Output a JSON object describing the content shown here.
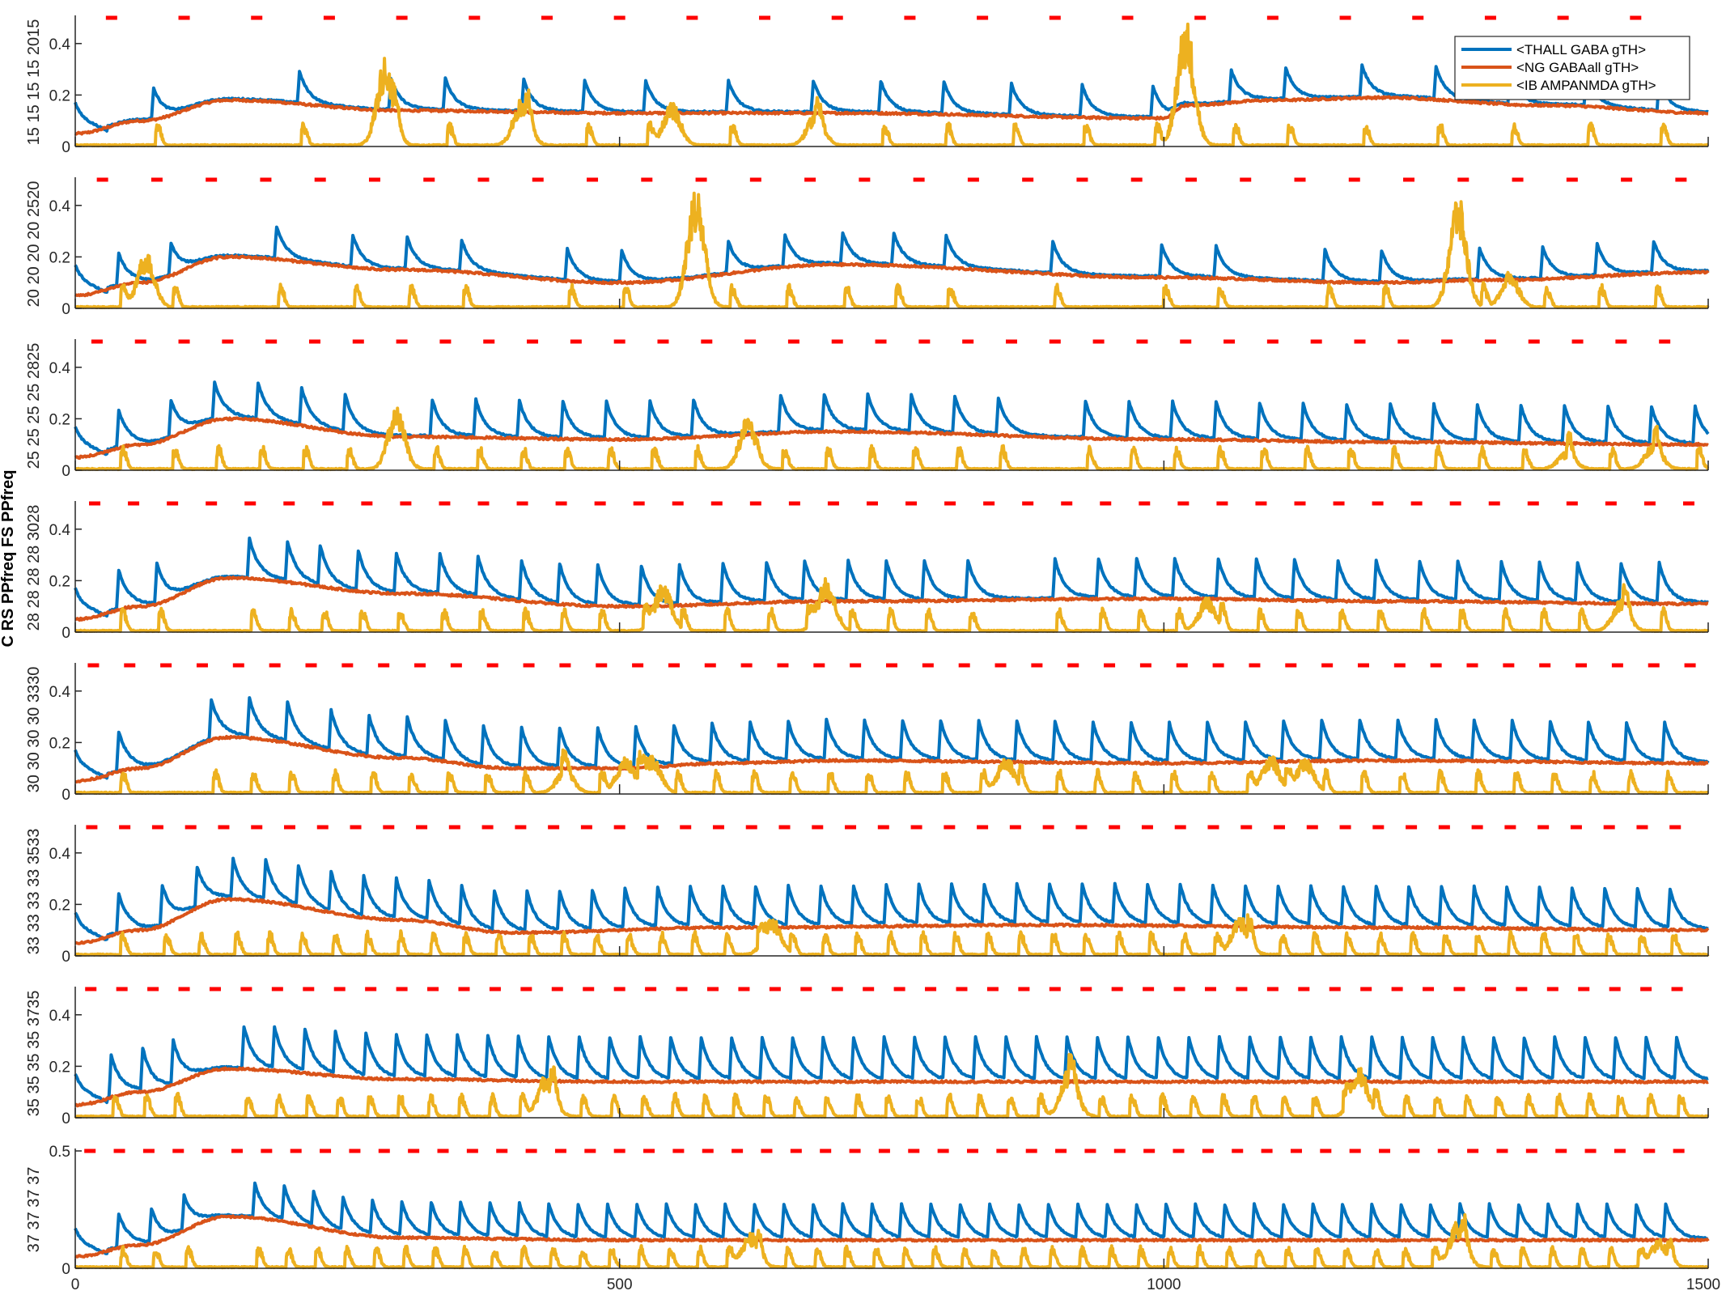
{
  "chart_data": {
    "type": "line",
    "xlim": [
      0,
      1500
    ],
    "x_ticks": [
      "0",
      "500",
      "1000",
      "1500"
    ],
    "row_labels": [
      "15 15 15 15 2015",
      "20 20 20 20 2520",
      "25 25 25 25 2825",
      "28 28 28 28 3028",
      "30 30 30 30 3330",
      "33 33 33 33 3533",
      "35 35 35 35 3735",
      "37 37 37 37"
    ],
    "bold_label": "C RS PPfreq FS PPfreq",
    "legend_position": "top-right",
    "legend": [
      "<THALL GABA gTH>",
      "<NG GABAall gTH>",
      "<IB AMPANMDA gTH>"
    ],
    "colors": {
      "thall": "#0072BD",
      "ng": "#D95319",
      "ib": "#EDB120",
      "pulse": "#FF0000",
      "axis": "#262626"
    },
    "panels": [
      {
        "frequency": 15,
        "ylim": [
          0,
          0.5
        ],
        "y_ticks": [
          "0",
          "0.2",
          "0.4"
        ],
        "thall_peak_times": [
          72,
          206,
          290,
          340,
          412,
          468,
          524,
          600,
          678,
          740,
          798,
          860,
          925,
          990,
          1062,
          1112,
          1182,
          1250,
          1318,
          1388,
          1455
        ],
        "thall_peak_amp": 0.22,
        "ng_envelope": {
          "t": [
            0,
            60,
            140,
            300,
            500,
            700,
            1000,
            1020,
            1100,
            1200,
            1350,
            1500
          ],
          "v": [
            0.05,
            0.1,
            0.18,
            0.14,
            0.13,
            0.13,
            0.11,
            0.16,
            0.18,
            0.19,
            0.16,
            0.13
          ]
        },
        "ib_bursts": [
          {
            "t": 285,
            "amp": 0.35
          },
          {
            "t": 410,
            "amp": 0.18
          },
          {
            "t": 548,
            "amp": 0.17
          },
          {
            "t": 680,
            "amp": 0.13
          },
          {
            "t": 1020,
            "amp": 0.5
          }
        ]
      },
      {
        "frequency": 20,
        "ylim": [
          0,
          0.5
        ],
        "y_ticks": [
          "0",
          "0.2",
          "0.4"
        ],
        "thall_peak_times": [
          40,
          88,
          185,
          255,
          305,
          355,
          452,
          502,
          600,
          652,
          705,
          752,
          800,
          898,
          998,
          1048,
          1148,
          1200,
          1290,
          1348,
          1398,
          1450
        ],
        "thall_peak_amp": 0.22,
        "ng_envelope": {
          "t": [
            0,
            60,
            140,
            300,
            500,
            700,
            1000,
            1200,
            1300,
            1500
          ],
          "v": [
            0.05,
            0.1,
            0.2,
            0.15,
            0.1,
            0.17,
            0.12,
            0.1,
            0.11,
            0.14
          ]
        },
        "ib_bursts": [
          {
            "t": 65,
            "amp": 0.22
          },
          {
            "t": 570,
            "amp": 0.48
          },
          {
            "t": 1270,
            "amp": 0.44
          },
          {
            "t": 1318,
            "amp": 0.14
          }
        ]
      },
      {
        "frequency": 25,
        "ylim": [
          0,
          0.5
        ],
        "y_ticks": [
          "0",
          "0.2",
          "0.4"
        ],
        "thall_peak_times": [
          40,
          88,
          128,
          168,
          208,
          248,
          328,
          368,
          408,
          448,
          488,
          528,
          568,
          648,
          688,
          728,
          768,
          808,
          848,
          928,
          968,
          1008,
          1048,
          1088,
          1128,
          1168,
          1208,
          1248,
          1288,
          1328,
          1368,
          1408,
          1448,
          1488
        ],
        "thall_peak_amp": 0.24,
        "ng_envelope": {
          "t": [
            0,
            60,
            140,
            300,
            500,
            700,
            1000,
            1200,
            1500
          ],
          "v": [
            0.05,
            0.1,
            0.2,
            0.13,
            0.12,
            0.15,
            0.12,
            0.11,
            0.1
          ]
        },
        "ib_bursts": [
          {
            "t": 295,
            "amp": 0.24
          },
          {
            "t": 618,
            "amp": 0.21
          },
          {
            "t": 1370,
            "amp": 0.07
          },
          {
            "t": 1450,
            "amp": 0.1
          }
        ]
      },
      {
        "frequency": 28,
        "ylim": [
          0,
          0.5
        ],
        "y_ticks": [
          "0",
          "0.2",
          "0.4"
        ],
        "thall_peak_times": [
          40,
          75,
          160,
          195,
          225,
          260,
          295,
          335,
          370,
          410,
          445,
          480,
          520,
          555,
          595,
          635,
          670,
          710,
          745,
          780,
          820,
          900,
          940,
          975,
          1010,
          1050,
          1085,
          1120,
          1160,
          1195,
          1235,
          1270,
          1310,
          1345,
          1380,
          1420,
          1455
        ],
        "thall_peak_amp": 0.25,
        "ng_envelope": {
          "t": [
            0,
            60,
            140,
            300,
            500,
            700,
            1000,
            1200,
            1500
          ],
          "v": [
            0.05,
            0.1,
            0.21,
            0.15,
            0.1,
            0.12,
            0.13,
            0.12,
            0.11
          ]
        },
        "ib_bursts": [
          {
            "t": 540,
            "amp": 0.19
          },
          {
            "t": 690,
            "amp": 0.21
          },
          {
            "t": 1040,
            "amp": 0.13
          },
          {
            "t": 1420,
            "amp": 0.12
          }
        ]
      },
      {
        "frequency": 30,
        "ylim": [
          0,
          0.5
        ],
        "y_ticks": [
          "0",
          "0.2",
          "0.4"
        ],
        "thall_peak_times": [
          40,
          125,
          160,
          195,
          235,
          270,
          305,
          340,
          375,
          410,
          445,
          480,
          515,
          550,
          585,
          620,
          655,
          690,
          725,
          760,
          795,
          830,
          865,
          900,
          935,
          970,
          1005,
          1040,
          1075,
          1110,
          1145,
          1180,
          1215,
          1250,
          1285,
          1320,
          1355,
          1390,
          1425,
          1460
        ],
        "thall_peak_amp": 0.25,
        "ng_envelope": {
          "t": [
            0,
            60,
            140,
            300,
            400,
            500,
            600,
            700,
            1000,
            1200,
            1500
          ],
          "v": [
            0.05,
            0.1,
            0.22,
            0.14,
            0.1,
            0.1,
            0.12,
            0.13,
            0.12,
            0.13,
            0.12
          ]
        },
        "ib_bursts": [
          {
            "t": 450,
            "amp": 0.1
          },
          {
            "t": 505,
            "amp": 0.14
          },
          {
            "t": 530,
            "amp": 0.15
          },
          {
            "t": 855,
            "amp": 0.15
          },
          {
            "t": 1098,
            "amp": 0.15
          },
          {
            "t": 1130,
            "amp": 0.14
          }
        ]
      },
      {
        "frequency": 33,
        "ylim": [
          0,
          0.5
        ],
        "y_ticks": [
          "0",
          "0.2",
          "0.4"
        ],
        "thall_peak_times": [
          40,
          80,
          112,
          145,
          175,
          205,
          235,
          265,
          295,
          325,
          355,
          385,
          415,
          445,
          475,
          505,
          535,
          565,
          595,
          625,
          655,
          685,
          715,
          745,
          775,
          805,
          835,
          865,
          895,
          925,
          955,
          985,
          1015,
          1045,
          1075,
          1105,
          1135,
          1165,
          1195,
          1225,
          1255,
          1285,
          1315,
          1345,
          1375,
          1405,
          1435,
          1465
        ],
        "thall_peak_amp": 0.25,
        "ng_envelope": {
          "t": [
            0,
            60,
            140,
            300,
            400,
            600,
            900,
            1200,
            1500
          ],
          "v": [
            0.05,
            0.1,
            0.22,
            0.14,
            0.09,
            0.11,
            0.12,
            0.11,
            0.1
          ]
        },
        "ib_bursts": [
          {
            "t": 640,
            "amp": 0.15
          },
          {
            "t": 1070,
            "amp": 0.15
          }
        ]
      },
      {
        "frequency": 35,
        "ylim": [
          0,
          0.5
        ],
        "y_ticks": [
          "0",
          "0.2",
          "0.4"
        ],
        "thall_peak_times": [
          33,
          62,
          90,
          155,
          183,
          211,
          239,
          267,
          295,
          323,
          351,
          379,
          407,
          435,
          463,
          491,
          519,
          547,
          575,
          603,
          631,
          659,
          687,
          715,
          743,
          771,
          799,
          827,
          855,
          883,
          911,
          939,
          967,
          995,
          1023,
          1051,
          1079,
          1107,
          1135,
          1163,
          1191,
          1219,
          1247,
          1275,
          1303,
          1331,
          1359,
          1387,
          1415,
          1443,
          1471
        ],
        "thall_peak_amp": 0.26,
        "ng_envelope": {
          "t": [
            0,
            60,
            140,
            300,
            500,
            1000,
            1500
          ],
          "v": [
            0.05,
            0.1,
            0.19,
            0.15,
            0.14,
            0.14,
            0.14
          ]
        },
        "ib_bursts": [
          {
            "t": 433,
            "amp": 0.17
          },
          {
            "t": 913,
            "amp": 0.19
          },
          {
            "t": 1180,
            "amp": 0.19
          }
        ]
      },
      {
        "frequency": 37,
        "ylim": [
          0,
          0.5
        ],
        "y_ticks": [
          "0",
          "0.5"
        ],
        "thall_peak_times": [
          40,
          70,
          100,
          165,
          192,
          219,
          246,
          273,
          300,
          327,
          354,
          381,
          408,
          435,
          462,
          489,
          516,
          543,
          570,
          597,
          624,
          651,
          678,
          705,
          732,
          759,
          786,
          813,
          840,
          867,
          894,
          921,
          948,
          975,
          1002,
          1029,
          1056,
          1083,
          1110,
          1137,
          1164,
          1191,
          1218,
          1245,
          1272,
          1299,
          1326,
          1353,
          1380,
          1407,
          1434,
          1461
        ],
        "thall_peak_amp": 0.24,
        "ng_envelope": {
          "t": [
            0,
            60,
            140,
            300,
            500,
            1000,
            1500
          ],
          "v": [
            0.05,
            0.1,
            0.22,
            0.13,
            0.12,
            0.12,
            0.12
          ]
        },
        "ib_bursts": [
          {
            "t": 620,
            "amp": 0.15
          },
          {
            "t": 1270,
            "amp": 0.2
          },
          {
            "t": 1455,
            "amp": 0.12
          }
        ]
      }
    ]
  }
}
